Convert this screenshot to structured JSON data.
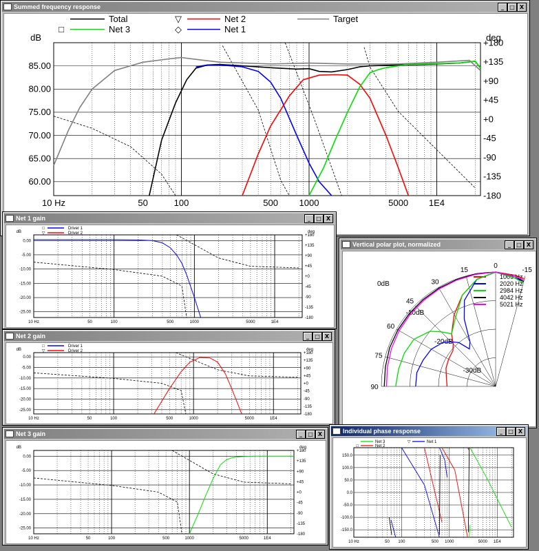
{
  "windows": {
    "main": {
      "title": "Summed frequency response"
    },
    "net1": {
      "title": "Net 1 gain"
    },
    "net2": {
      "title": "Net 2 gain"
    },
    "net3": {
      "title": "Net 3 gain"
    },
    "polar": {
      "title": "Vertical polar plot, normalized"
    },
    "phase": {
      "title": "Individual phase response"
    }
  },
  "controls": {
    "minimize": "_",
    "maximize": "□",
    "close": "X"
  },
  "colors": {
    "net1": "#0000ff",
    "net2": "#ff0000",
    "net3": "#00e000",
    "total": "#000000",
    "target": "#808080",
    "net4042": "#000000",
    "net5021": "#ff00ff"
  },
  "chart_data": [
    {
      "id": "main",
      "type": "line",
      "ylabel": "dB",
      "y2label": "deg",
      "y_ticks": [
        "85.00",
        "80.00",
        "75.00",
        "70.00",
        "65.00",
        "60.00"
      ],
      "y2_ticks": [
        "+180",
        "+135",
        "+90",
        "+45",
        "+0",
        "-45",
        "-90",
        "-135",
        "-180"
      ],
      "x_ticks": [
        "10 Hz",
        "50",
        "100",
        "500",
        "1000",
        "5000",
        "1E4"
      ],
      "ylim": [
        57,
        90
      ],
      "xlim": [
        10,
        22000
      ],
      "xscale": "log",
      "legend": [
        {
          "name": "Total",
          "marker": ""
        },
        {
          "name": "Net 2",
          "marker": "▽"
        },
        {
          "name": "Target",
          "marker": ""
        },
        {
          "name": "Net 3",
          "marker": "□"
        },
        {
          "name": "Net 1",
          "marker": "◇"
        }
      ],
      "series": [
        {
          "name": "Total",
          "x": [
            56,
            70,
            90,
            110,
            130,
            160,
            200,
            300,
            500,
            800,
            1000,
            1200,
            1500,
            2000,
            2500,
            3000,
            5000,
            8000,
            15000,
            20000,
            22000
          ],
          "y": [
            57,
            69,
            77,
            82,
            84.5,
            85.2,
            85.3,
            85,
            84.6,
            84.3,
            84.4,
            83.8,
            83.7,
            84.2,
            84.8,
            85,
            85.2,
            85.3,
            85.6,
            86.0,
            84.5
          ]
        },
        {
          "name": "Net 1",
          "x": [
            130,
            160,
            200,
            300,
            400,
            500,
            600,
            800,
            1000,
            1200,
            1500
          ],
          "y": [
            84.8,
            85.2,
            85.2,
            84.8,
            83.8,
            81.5,
            78,
            70,
            64,
            60,
            57
          ]
        },
        {
          "name": "Net 2",
          "x": [
            300,
            400,
            500,
            700,
            900,
            1200,
            1600,
            2000,
            2500,
            3000,
            4000,
            5000,
            6000
          ],
          "y": [
            57,
            66,
            72,
            78.5,
            82,
            83,
            83.1,
            83,
            81,
            78,
            70,
            63,
            57
          ]
        },
        {
          "name": "Net 3",
          "x": [
            1000,
            1300,
            1600,
            2000,
            2500,
            3000,
            3500,
            4000,
            6000,
            10000,
            15000,
            20000,
            22000
          ],
          "y": [
            57,
            63,
            69,
            75,
            80.5,
            83.5,
            84.2,
            84.6,
            85.3,
            85.5,
            85.6,
            86.0,
            84.5
          ]
        },
        {
          "name": "Target",
          "x": [
            10,
            13,
            16,
            20,
            30,
            50,
            80,
            100,
            130,
            200,
            500,
            1000,
            2000,
            5000,
            10000,
            18000,
            22000
          ],
          "y": [
            63.5,
            71,
            76,
            80,
            84,
            85.8,
            86.5,
            86.8,
            86.4,
            85.8,
            85.4,
            85.6,
            85.4,
            85.4,
            85.8,
            86.2,
            84
          ]
        }
      ]
    },
    {
      "id": "net1",
      "type": "line",
      "ylabel": "dB",
      "y2label": "deg",
      "legend": [
        {
          "name": "Driver 1",
          "marker": "□"
        },
        {
          "name": "Driver 2",
          "marker": "▽"
        }
      ],
      "y_ticks": [
        "0.00",
        "-5.00",
        "-10.00",
        "-15.00",
        "-20.00",
        "-25.00"
      ],
      "y2_ticks": [
        "+180",
        "+135",
        "+90",
        "+45",
        "+0",
        "-45",
        "-90",
        "-135",
        "-180"
      ],
      "x_ticks": [
        "10 Hz",
        "50",
        "100",
        "500",
        "1000",
        "5000",
        "1E4"
      ],
      "ylim": [
        -27,
        2
      ],
      "xlim": [
        10,
        22000
      ],
      "series": [
        {
          "name": "Net 1",
          "x": [
            10,
            100,
            200,
            300,
            400,
            500,
            600,
            700,
            800,
            1000,
            1200
          ],
          "y": [
            0.3,
            0.3,
            0.2,
            0,
            -0.8,
            -2.5,
            -5,
            -8,
            -12,
            -20,
            -27
          ]
        }
      ]
    },
    {
      "id": "net2",
      "type": "line",
      "ylabel": "dB",
      "y2label": "deg",
      "legend": [
        {
          "name": "Driver 1",
          "marker": "□"
        },
        {
          "name": "Driver 2",
          "marker": "▽"
        }
      ],
      "y_ticks": [
        "0.00",
        "-5.00",
        "-10.00",
        "-15.00",
        "-20.00",
        "-25.00"
      ],
      "y2_ticks": [
        "+180",
        "+135",
        "+90",
        "+45",
        "+0",
        "-45",
        "-90",
        "-135",
        "-180"
      ],
      "x_ticks": [
        "10 Hz",
        "50",
        "100",
        "500",
        "1000",
        "5000",
        "1E4"
      ],
      "ylim": [
        -27,
        2
      ],
      "xlim": [
        10,
        22000
      ],
      "series": [
        {
          "name": "Net 2",
          "x": [
            320,
            400,
            500,
            700,
            900,
            1200,
            1600,
            2000,
            2500,
            3000,
            4000
          ],
          "y": [
            -27,
            -21,
            -15,
            -7,
            -2.5,
            -0.3,
            -0.5,
            -2.5,
            -8,
            -15,
            -27
          ]
        }
      ]
    },
    {
      "id": "net3",
      "type": "line",
      "ylabel": "dB",
      "y2label": "deg",
      "y_ticks": [
        "0.00",
        "-5.00",
        "-10.00",
        "-15.00",
        "-20.00",
        "-25.00"
      ],
      "y2_ticks": [
        "+180",
        "+135",
        "+90",
        "+45",
        "+0",
        "-45",
        "-90",
        "-135",
        "-180"
      ],
      "x_ticks": [
        "10 Hz",
        "50",
        "100",
        "500",
        "1000",
        "5000",
        "1E4"
      ],
      "ylim": [
        -27,
        2
      ],
      "xlim": [
        10,
        22000
      ],
      "series": [
        {
          "name": "Net 3",
          "x": [
            1000,
            1300,
            1600,
            2000,
            2500,
            3000,
            3500,
            4000,
            5000,
            7000,
            10000,
            22000
          ],
          "y": [
            -27,
            -20,
            -14,
            -8,
            -3,
            -1.2,
            -0.6,
            -0.3,
            -0.1,
            0,
            0,
            0
          ]
        }
      ]
    },
    {
      "id": "polar",
      "type": "line",
      "title": "Vertical polar plot, normalized",
      "r_ticks": [
        "0dB",
        "-10dB",
        "-20dB",
        "-30dB"
      ],
      "angle_ticks": [
        "90",
        "75",
        "60",
        "45",
        "30",
        "15",
        "0",
        "-15"
      ],
      "series": [
        {
          "name": "1009 Hz",
          "angles": [
            90,
            80,
            70,
            60,
            50,
            45,
            40,
            30,
            20,
            10,
            0,
            -10,
            -15
          ],
          "r_db": [
            -23,
            -22.5,
            -21.5,
            -21,
            -20.5,
            -19,
            -16,
            -11,
            -6,
            -2,
            0,
            -0.5,
            -1
          ]
        },
        {
          "name": "2020 Hz",
          "angles": [
            90,
            80,
            70,
            60,
            50,
            45,
            40,
            35,
            30,
            25,
            20,
            10,
            0,
            -10,
            -15
          ],
          "r_db": [
            -12,
            -12,
            -13,
            -14,
            -16,
            -18,
            -20,
            -24,
            -22,
            -14,
            -8,
            -2,
            0,
            -1.5,
            -2
          ]
        },
        {
          "name": "2984 Hz",
          "angles": [
            90,
            80,
            70,
            60,
            50,
            45,
            40,
            30,
            20,
            10,
            0,
            -10,
            -15
          ],
          "r_db": [
            -5,
            -5.5,
            -6,
            -7,
            -10,
            -13,
            -16,
            -12,
            -6,
            -2,
            0,
            -1.5,
            -2.5
          ]
        },
        {
          "name": "4042 Hz",
          "angles": [
            90,
            80,
            70,
            60,
            50,
            40,
            30,
            20,
            10,
            0,
            -10,
            -15
          ],
          "r_db": [
            -1,
            -0.8,
            -0.5,
            -0.5,
            -0.5,
            -0.4,
            -0.3,
            -0.2,
            0,
            0,
            -1,
            -2
          ]
        },
        {
          "name": "5021 Hz",
          "angles": [
            90,
            80,
            70,
            60,
            50,
            40,
            30,
            20,
            10,
            0,
            -10,
            -15
          ],
          "r_db": [
            -1.8,
            -1.5,
            -1.2,
            -1,
            -0.9,
            -0.8,
            -0.6,
            -0.4,
            -0.2,
            0,
            -1,
            -1.5
          ]
        }
      ]
    },
    {
      "id": "phase",
      "type": "line",
      "legend": [
        {
          "name": "Net 3",
          "marker": ""
        },
        {
          "name": "Net 1",
          "marker": "▽"
        },
        {
          "name": "Net 2",
          "marker": "□"
        }
      ],
      "y_ticks": [
        "150.0",
        "100.0",
        "50.0",
        "0.0",
        "-50.0",
        "-100.0",
        "-150.0"
      ],
      "x_ticks": [
        "10 Hz",
        "50",
        "100",
        "500",
        "1000",
        "5000",
        "1E4"
      ],
      "ylim": [
        -180,
        180
      ],
      "xlim": [
        10,
        22000
      ]
    }
  ]
}
